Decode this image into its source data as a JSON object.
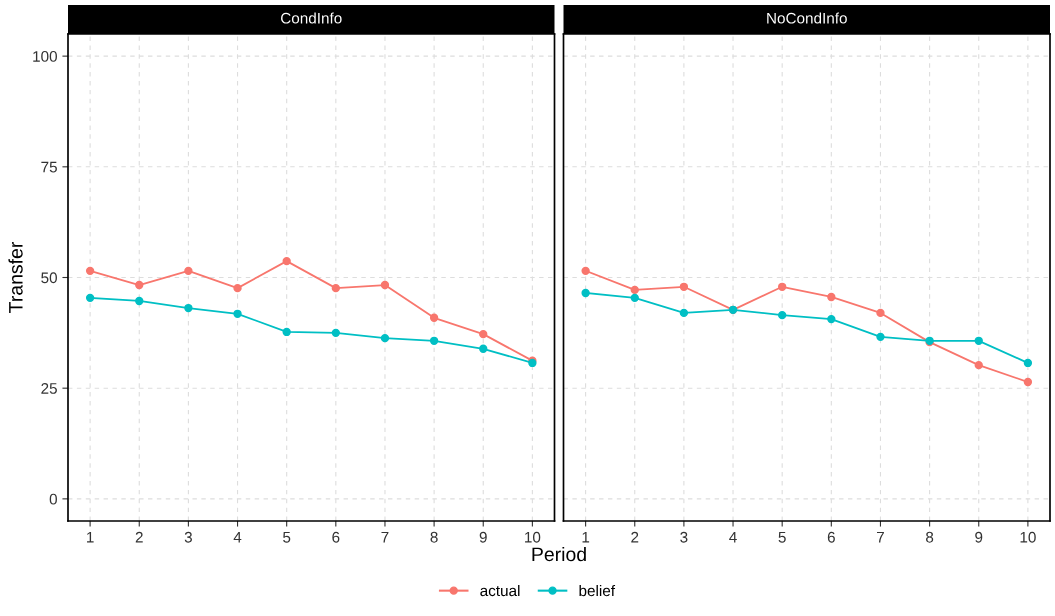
{
  "chart_data": [
    {
      "type": "line",
      "title": "CondInfo",
      "xlabel": "Period",
      "ylabel": "Transfer",
      "x": [
        1,
        2,
        3,
        4,
        5,
        6,
        7,
        8,
        9,
        10
      ],
      "xlim": [
        0.55,
        10.45
      ],
      "xticks": [
        1,
        2,
        3,
        4,
        5,
        6,
        7,
        8,
        9,
        10
      ],
      "ylim": [
        -5,
        105
      ],
      "yticks": [
        0,
        25,
        50,
        75,
        100
      ],
      "grid": true,
      "marker": "circle",
      "line_style": "solid",
      "legend": "bottom",
      "series": [
        {
          "name": "actual",
          "color": "#f8766d",
          "values": [
            51.5,
            48.3,
            51.5,
            47.6,
            53.7,
            47.6,
            48.3,
            40.9,
            37.2,
            31.2
          ]
        },
        {
          "name": "belief",
          "color": "#00bfc4",
          "values": [
            45.4,
            44.7,
            43.1,
            41.8,
            37.7,
            37.5,
            36.3,
            35.7,
            33.9,
            30.7
          ]
        }
      ]
    },
    {
      "type": "line",
      "title": "NoCondInfo",
      "x": [
        1,
        2,
        3,
        4,
        5,
        6,
        7,
        8,
        9,
        10
      ],
      "xlim": [
        0.55,
        10.45
      ],
      "xticks": [
        1,
        2,
        3,
        4,
        5,
        6,
        7,
        8,
        9,
        10
      ],
      "ylim": [
        -5,
        105
      ],
      "yticks": [
        0,
        25,
        50,
        75,
        100
      ],
      "grid": true,
      "marker": "circle",
      "line_style": "solid",
      "tick_labels": "x",
      "series": [
        {
          "color": "#f8766d",
          "values": [
            51.5,
            47.2,
            47.9,
            42.7,
            47.9,
            45.6,
            42.0,
            35.4,
            30.2,
            26.4
          ]
        },
        {
          "color": "#00bfc4",
          "values": [
            46.5,
            45.4,
            42.0,
            42.7,
            41.5,
            40.6,
            36.6,
            35.7,
            35.7,
            30.7
          ]
        }
      ]
    }
  ]
}
